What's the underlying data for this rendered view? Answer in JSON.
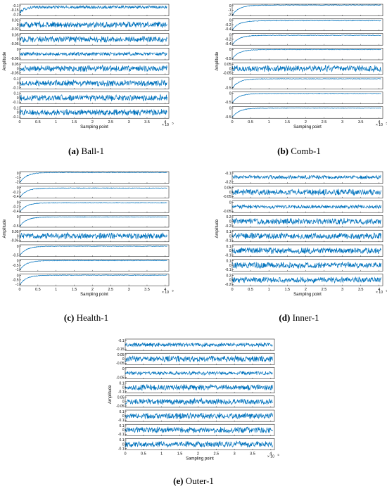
{
  "figure": {
    "panels": [
      {
        "id": "a",
        "letter": "(a)",
        "name": "Ball-1",
        "ylabel": "Amplitude",
        "xlabel": "Sampling point",
        "x_ticks": [
          "0",
          "0.5",
          "1",
          "1.5",
          "2",
          "2.5",
          "3",
          "3.5",
          "4"
        ],
        "x_multiplier_base": "× 10",
        "x_multiplier_exp": "5",
        "rows": [
          {
            "type": "settle_noise",
            "ticks": [
              "-0.1",
              "-0.15",
              "-0.2"
            ],
            "ylim": [
              -0.2,
              -0.1
            ],
            "mean": -0.125,
            "amp": 0.012,
            "start": -0.175
          },
          {
            "type": "noise",
            "ticks": [
              "0.02",
              "0",
              "-0.02"
            ],
            "ylim": [
              -0.025,
              0.025
            ],
            "mean": 0,
            "amp": 0.014
          },
          {
            "type": "noise",
            "ticks": [
              "0.05",
              "0",
              "-0.05"
            ],
            "ylim": [
              -0.06,
              0.06
            ],
            "mean": 0,
            "amp": 0.035
          },
          {
            "type": "noise",
            "ticks": [
              "0",
              "-0.05"
            ],
            "ylim": [
              -0.06,
              0.01
            ],
            "mean": -0.025,
            "amp": 0.012
          },
          {
            "type": "noise",
            "ticks": [
              "0.05",
              "0",
              "-0.05"
            ],
            "ylim": [
              -0.06,
              0.06
            ],
            "mean": 0,
            "amp": 0.035
          },
          {
            "type": "noise",
            "ticks": [
              "0.1",
              "0",
              "-0.1"
            ],
            "ylim": [
              -0.12,
              0.12
            ],
            "mean": 0,
            "amp": 0.07
          },
          {
            "type": "noise",
            "ticks": [
              "0.1",
              "0",
              "-0.1"
            ],
            "ylim": [
              -0.12,
              0.12
            ],
            "mean": 0,
            "amp": 0.07
          },
          {
            "type": "noise",
            "ticks": [
              "0.1",
              "0",
              "-0.1"
            ],
            "ylim": [
              -0.12,
              0.12
            ],
            "mean": 0,
            "amp": 0.07
          }
        ]
      },
      {
        "id": "b",
        "letter": "(b)",
        "name": "Comb-1",
        "ylabel": "Amplitude",
        "xlabel": "Sampling point",
        "x_ticks": [
          "0",
          "0.5",
          "1",
          "1.5",
          "2",
          "2.5",
          "3",
          "3.5",
          "4"
        ],
        "x_multiplier_base": "× 10",
        "x_multiplier_exp": "5",
        "rows": [
          {
            "type": "settle",
            "ticks": [
              "0",
              "-1",
              "-2"
            ],
            "ylim": [
              -2,
              0.1
            ],
            "end": -0.05,
            "start": -1.9
          },
          {
            "type": "settle",
            "ticks": [
              "0",
              "-0.2",
              "-0.4"
            ],
            "ylim": [
              -0.4,
              0.05
            ],
            "end": -0.02,
            "start": -0.38
          },
          {
            "type": "settle",
            "ticks": [
              "0",
              "-0.2",
              "-0.4"
            ],
            "ylim": [
              -0.4,
              0.05
            ],
            "end": -0.02,
            "start": -0.38
          },
          {
            "type": "settle",
            "ticks": [
              "0",
              "-0.5"
            ],
            "ylim": [
              -0.6,
              0.05
            ],
            "end": -0.03,
            "start": -0.55
          },
          {
            "type": "noise",
            "ticks": [
              "0.05",
              "0",
              "-0.05"
            ],
            "ylim": [
              -0.06,
              0.06
            ],
            "mean": 0,
            "amp": 0.035
          },
          {
            "type": "settle",
            "ticks": [
              "0",
              "-0.5"
            ],
            "ylim": [
              -0.6,
              0.05
            ],
            "end": -0.03,
            "start": -0.55
          },
          {
            "type": "settle",
            "ticks": [
              "0",
              "-0.5"
            ],
            "ylim": [
              -0.6,
              0.05
            ],
            "end": -0.03,
            "start": -0.55
          },
          {
            "type": "settle",
            "ticks": [
              "0",
              "-0.5"
            ],
            "ylim": [
              -0.6,
              0.05
            ],
            "end": -0.03,
            "start": -0.55
          }
        ]
      },
      {
        "id": "c",
        "letter": "(c)",
        "name": "Health-1",
        "ylabel": "Amplitude",
        "xlabel": "Sampling point",
        "x_ticks": [
          "0",
          "0.5",
          "1",
          "1.5",
          "2",
          "2.5",
          "3",
          "3.5",
          "4"
        ],
        "x_multiplier_base": "× 10",
        "x_multiplier_exp": "5",
        "rows": [
          {
            "type": "settle",
            "ticks": [
              "0",
              "-1",
              "-2"
            ],
            "ylim": [
              -2,
              0.1
            ],
            "end": -0.05,
            "start": -1.9
          },
          {
            "type": "settle",
            "ticks": [
              "0",
              "-0.2",
              "-0.4"
            ],
            "ylim": [
              -0.4,
              0.05
            ],
            "end": -0.02,
            "start": -0.38
          },
          {
            "type": "settle",
            "ticks": [
              "0",
              "-0.2",
              "-0.4"
            ],
            "ylim": [
              -0.4,
              0.05
            ],
            "end": -0.02,
            "start": -0.38
          },
          {
            "type": "settle",
            "ticks": [
              "0",
              "-0.5"
            ],
            "ylim": [
              -0.6,
              0.05
            ],
            "end": -0.03,
            "start": -0.55
          },
          {
            "type": "noise",
            "ticks": [
              "0.05",
              "0",
              "-0.05"
            ],
            "ylim": [
              -0.06,
              0.06
            ],
            "mean": 0,
            "amp": 0.035
          },
          {
            "type": "settle",
            "ticks": [
              "0",
              "-0.5"
            ],
            "ylim": [
              -0.6,
              0.05
            ],
            "end": -0.03,
            "start": -0.55
          },
          {
            "type": "settle",
            "ticks": [
              "0",
              "-0.5",
              "-1"
            ],
            "ylim": [
              -1,
              0.05
            ],
            "end": -0.05,
            "start": -0.9
          },
          {
            "type": "settle",
            "ticks": [
              "0",
              "-0.5",
              "-1"
            ],
            "ylim": [
              -1,
              0.05
            ],
            "end": -0.05,
            "start": -0.9
          }
        ]
      },
      {
        "id": "d",
        "letter": "(d)",
        "name": "Inner-1",
        "ylabel": "Amplitude",
        "xlabel": "Sampling point",
        "x_ticks": [
          "0",
          "0.5",
          "1",
          "1.5",
          "2",
          "2.5",
          "3",
          "3.5",
          "4"
        ],
        "x_multiplier_base": "× 10",
        "x_multiplier_exp": "5",
        "rows": [
          {
            "type": "noise",
            "ticks": [
              "-0.1",
              "-0.2"
            ],
            "ylim": [
              -0.22,
              -0.05
            ],
            "mean": -0.13,
            "amp": 0.03
          },
          {
            "type": "noise",
            "ticks": [
              "0.05",
              "0",
              "-0.05"
            ],
            "ylim": [
              -0.06,
              0.06
            ],
            "mean": 0,
            "amp": 0.035
          },
          {
            "type": "noise",
            "ticks": [
              "0",
              "-0.05"
            ],
            "ylim": [
              -0.06,
              0.01
            ],
            "mean": -0.025,
            "amp": 0.012
          },
          {
            "type": "noise",
            "ticks": [
              "0.2",
              "0",
              "-0.2"
            ],
            "ylim": [
              -0.25,
              0.25
            ],
            "mean": 0,
            "amp": 0.14
          },
          {
            "type": "noise",
            "ticks": [
              "0.1",
              "0",
              "-0.1"
            ],
            "ylim": [
              -0.12,
              0.12
            ],
            "mean": 0,
            "amp": 0.07
          },
          {
            "type": "noise",
            "ticks": [
              "0.1",
              "0",
              "-0.1"
            ],
            "ylim": [
              -0.12,
              0.12
            ],
            "mean": 0,
            "amp": 0.07
          },
          {
            "type": "noise",
            "ticks": [
              "0.1",
              "0",
              "-0.1"
            ],
            "ylim": [
              -0.12,
              0.12
            ],
            "mean": 0,
            "amp": 0.07
          },
          {
            "type": "noise",
            "ticks": [
              "0.2",
              "0",
              "-0.2"
            ],
            "ylim": [
              -0.25,
              0.25
            ],
            "mean": 0,
            "amp": 0.14
          }
        ]
      },
      {
        "id": "e",
        "letter": "(e)",
        "name": "Outer-1",
        "ylabel": "Amplitude",
        "xlabel": "Sampling point",
        "x_ticks": [
          "0",
          "0.5",
          "1",
          "1.5",
          "2",
          "2.5",
          "3",
          "3.5",
          "4"
        ],
        "x_multiplier_base": "× 10",
        "x_multiplier_exp": "5",
        "rows": [
          {
            "type": "noise",
            "ticks": [
              "-0.1",
              "-0.15"
            ],
            "ylim": [
              -0.16,
              -0.09
            ],
            "mean": -0.125,
            "amp": 0.014
          },
          {
            "type": "noise",
            "ticks": [
              "0.05",
              "0",
              "-0.05"
            ],
            "ylim": [
              -0.06,
              0.06
            ],
            "mean": 0,
            "amp": 0.035
          },
          {
            "type": "noise",
            "ticks": [
              "0",
              "-0.05"
            ],
            "ylim": [
              -0.06,
              0.01
            ],
            "mean": -0.025,
            "amp": 0.012
          },
          {
            "type": "noise",
            "ticks": [
              "0.1",
              "0",
              "-0.1"
            ],
            "ylim": [
              -0.12,
              0.12
            ],
            "mean": 0,
            "amp": 0.07
          },
          {
            "type": "noise",
            "ticks": [
              "0.05",
              "0",
              "-0.05"
            ],
            "ylim": [
              -0.06,
              0.06
            ],
            "mean": 0,
            "amp": 0.035
          },
          {
            "type": "noise",
            "ticks": [
              "0.1",
              "0",
              "-0.1"
            ],
            "ylim": [
              -0.12,
              0.12
            ],
            "mean": 0,
            "amp": 0.07
          },
          {
            "type": "noise",
            "ticks": [
              "0.1",
              "0",
              "-0.1"
            ],
            "ylim": [
              -0.12,
              0.12
            ],
            "mean": 0,
            "amp": 0.07
          },
          {
            "type": "noise",
            "ticks": [
              "0.1",
              "0",
              "-0.1"
            ],
            "ylim": [
              -0.12,
              0.12
            ],
            "mean": 0,
            "amp": 0.07
          }
        ]
      }
    ]
  },
  "colors": {
    "signal": "#0072bd",
    "axis": "#000000",
    "text": "#000000"
  },
  "chart_data": [
    {
      "type": "line",
      "panel": "a",
      "title": "",
      "xlabel": "Sampling point",
      "ylabel": "Amplitude",
      "xlim": [
        0,
        410000
      ],
      "x_ticks": [
        0,
        50000,
        100000,
        150000,
        200000,
        250000,
        300000,
        350000,
        400000
      ],
      "series_count": 8,
      "series": [
        {
          "ylim": [
            -0.2,
            -0.1
          ]
        },
        {
          "ylim": [
            -0.025,
            0.025
          ]
        },
        {
          "ylim": [
            -0.06,
            0.06
          ]
        },
        {
          "ylim": [
            -0.06,
            0.01
          ]
        },
        {
          "ylim": [
            -0.06,
            0.06
          ]
        },
        {
          "ylim": [
            -0.12,
            0.12
          ]
        },
        {
          "ylim": [
            -0.12,
            0.12
          ]
        },
        {
          "ylim": [
            -0.12,
            0.12
          ]
        }
      ]
    },
    {
      "type": "line",
      "panel": "b",
      "title": "",
      "xlabel": "Sampling point",
      "ylabel": "Amplitude",
      "xlim": [
        0,
        410000
      ],
      "x_ticks": [
        0,
        50000,
        100000,
        150000,
        200000,
        250000,
        300000,
        350000,
        400000
      ],
      "series_count": 8,
      "series": [
        {
          "ylim": [
            -2,
            0.1
          ]
        },
        {
          "ylim": [
            -0.4,
            0.05
          ]
        },
        {
          "ylim": [
            -0.4,
            0.05
          ]
        },
        {
          "ylim": [
            -0.6,
            0.05
          ]
        },
        {
          "ylim": [
            -0.06,
            0.06
          ]
        },
        {
          "ylim": [
            -0.6,
            0.05
          ]
        },
        {
          "ylim": [
            -0.6,
            0.05
          ]
        },
        {
          "ylim": [
            -0.6,
            0.05
          ]
        }
      ]
    },
    {
      "type": "line",
      "panel": "c",
      "title": "",
      "xlabel": "Sampling point",
      "ylabel": "Amplitude",
      "xlim": [
        0,
        410000
      ],
      "x_ticks": [
        0,
        50000,
        100000,
        150000,
        200000,
        250000,
        300000,
        350000,
        400000
      ],
      "series_count": 8,
      "series": [
        {
          "ylim": [
            -2,
            0.1
          ]
        },
        {
          "ylim": [
            -0.4,
            0.05
          ]
        },
        {
          "ylim": [
            -0.4,
            0.05
          ]
        },
        {
          "ylim": [
            -0.6,
            0.05
          ]
        },
        {
          "ylim": [
            -0.06,
            0.06
          ]
        },
        {
          "ylim": [
            -0.6,
            0.05
          ]
        },
        {
          "ylim": [
            -1,
            0.05
          ]
        },
        {
          "ylim": [
            -1,
            0.05
          ]
        }
      ]
    },
    {
      "type": "line",
      "panel": "d",
      "title": "",
      "xlabel": "Sampling point",
      "ylabel": "Amplitude",
      "xlim": [
        0,
        410000
      ],
      "x_ticks": [
        0,
        50000,
        100000,
        150000,
        200000,
        250000,
        300000,
        350000,
        400000
      ],
      "series_count": 8,
      "series": [
        {
          "ylim": [
            -0.22,
            -0.05
          ]
        },
        {
          "ylim": [
            -0.06,
            0.06
          ]
        },
        {
          "ylim": [
            -0.06,
            0.01
          ]
        },
        {
          "ylim": [
            -0.25,
            0.25
          ]
        },
        {
          "ylim": [
            -0.12,
            0.12
          ]
        },
        {
          "ylim": [
            -0.12,
            0.12
          ]
        },
        {
          "ylim": [
            -0.12,
            0.12
          ]
        },
        {
          "ylim": [
            -0.25,
            0.25
          ]
        }
      ]
    },
    {
      "type": "line",
      "panel": "e",
      "title": "",
      "xlabel": "Sampling point",
      "ylabel": "Amplitude",
      "xlim": [
        0,
        410000
      ],
      "x_ticks": [
        0,
        50000,
        100000,
        150000,
        200000,
        250000,
        300000,
        350000,
        400000
      ],
      "series_count": 8,
      "series": [
        {
          "ylim": [
            -0.16,
            -0.09
          ]
        },
        {
          "ylim": [
            -0.06,
            0.06
          ]
        },
        {
          "ylim": [
            -0.06,
            0.01
          ]
        },
        {
          "ylim": [
            -0.12,
            0.12
          ]
        },
        {
          "ylim": [
            -0.06,
            0.06
          ]
        },
        {
          "ylim": [
            -0.12,
            0.12
          ]
        },
        {
          "ylim": [
            -0.12,
            0.12
          ]
        },
        {
          "ylim": [
            -0.12,
            0.12
          ]
        }
      ]
    }
  ]
}
